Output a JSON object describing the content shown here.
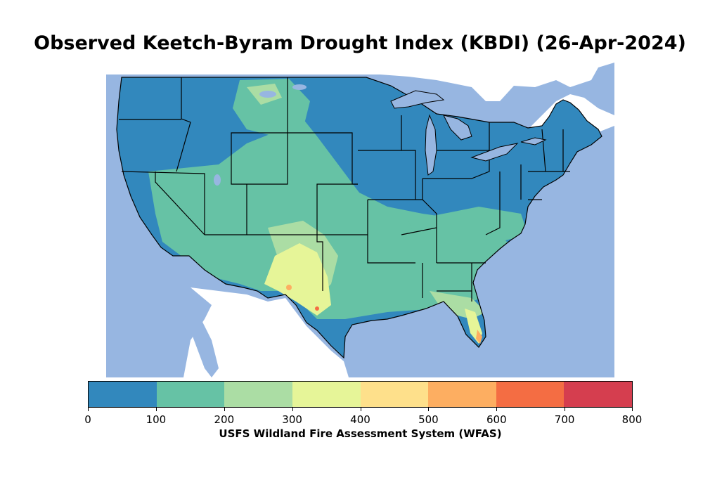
{
  "title": "Observed Keetch-Byram Drought Index (KBDI) (26-Apr-2024)",
  "colorbar": {
    "label": "USFS Wildland Fire Assessment System (WFAS)",
    "ticks": [
      "0",
      "100",
      "200",
      "300",
      "400",
      "500",
      "600",
      "700",
      "800"
    ],
    "colors": [
      "#3288bd",
      "#66c2a5",
      "#abdda4",
      "#e6f598",
      "#fee08b",
      "#fdae61",
      "#f46d43",
      "#d53e4f"
    ]
  },
  "map": {
    "ocean_color": "#97b6e1",
    "land_base_color": "#3288bd",
    "border_color": "#000000"
  }
}
